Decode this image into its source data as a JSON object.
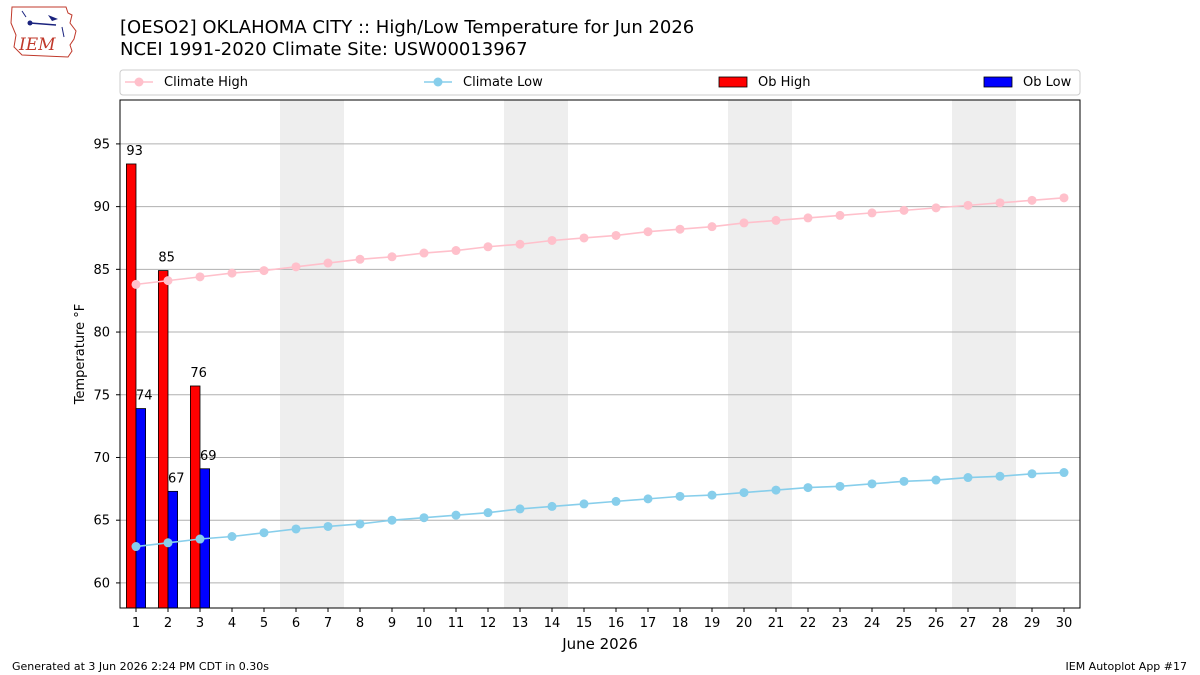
{
  "header": {
    "title_line1": "[OESO2] OKLAHOMA CITY :: High/Low Temperature for Jun 2026",
    "title_line2": "NCEI 1991-2020 Climate Site: USW00013967"
  },
  "footer": {
    "generated": "Generated at 3 Jun 2026 2:24 PM CDT in 0.30s",
    "app": "IEM Autoplot App #17"
  },
  "logo": {
    "text": "IEM",
    "icon": "iem-logo-icon"
  },
  "colors": {
    "climate_high": "#ffc0cb",
    "climate_low": "#87ceeb",
    "ob_high": "#ff0000",
    "ob_low": "#0000ff",
    "weekend_band": "#eeeeee",
    "grid": "#b0b0b0"
  },
  "chart_data": {
    "type": "bar",
    "xlabel": "June 2026",
    "ylabel": "Temperature °F",
    "xlim": [
      0.5,
      30.5
    ],
    "ylim": [
      58,
      98.5
    ],
    "yticks": [
      60,
      65,
      70,
      75,
      80,
      85,
      90,
      95
    ],
    "x": [
      1,
      2,
      3,
      4,
      5,
      6,
      7,
      8,
      9,
      10,
      11,
      12,
      13,
      14,
      15,
      16,
      17,
      18,
      19,
      20,
      21,
      22,
      23,
      24,
      25,
      26,
      27,
      28,
      29,
      30
    ],
    "weekend_ranges": [
      [
        6,
        7
      ],
      [
        13,
        14
      ],
      [
        20,
        21
      ],
      [
        27,
        28
      ]
    ],
    "grid": "horizontal",
    "legend_position": "top",
    "series": [
      {
        "name": "Climate High",
        "type": "line",
        "values": [
          83.8,
          84.1,
          84.4,
          84.7,
          84.9,
          85.2,
          85.5,
          85.8,
          86.0,
          86.3,
          86.5,
          86.8,
          87.0,
          87.3,
          87.5,
          87.7,
          88.0,
          88.2,
          88.4,
          88.7,
          88.9,
          89.1,
          89.3,
          89.5,
          89.7,
          89.9,
          90.1,
          90.3,
          90.5,
          90.7
        ]
      },
      {
        "name": "Climate Low",
        "type": "line",
        "values": [
          62.9,
          63.2,
          63.5,
          63.7,
          64.0,
          64.3,
          64.5,
          64.7,
          65.0,
          65.2,
          65.4,
          65.6,
          65.9,
          66.1,
          66.3,
          66.5,
          66.7,
          66.9,
          67.0,
          67.2,
          67.4,
          67.6,
          67.7,
          67.9,
          68.1,
          68.2,
          68.4,
          68.5,
          68.7,
          68.8
        ]
      },
      {
        "name": "Ob High",
        "type": "bar",
        "x": [
          1,
          2,
          3
        ],
        "values": [
          93.4,
          84.9,
          75.7
        ],
        "labels": [
          "93",
          "85",
          "76"
        ]
      },
      {
        "name": "Ob Low",
        "type": "bar",
        "x": [
          1,
          2,
          3
        ],
        "values": [
          73.9,
          67.3,
          69.1
        ],
        "labels": [
          "74",
          "67",
          "69"
        ]
      }
    ]
  }
}
